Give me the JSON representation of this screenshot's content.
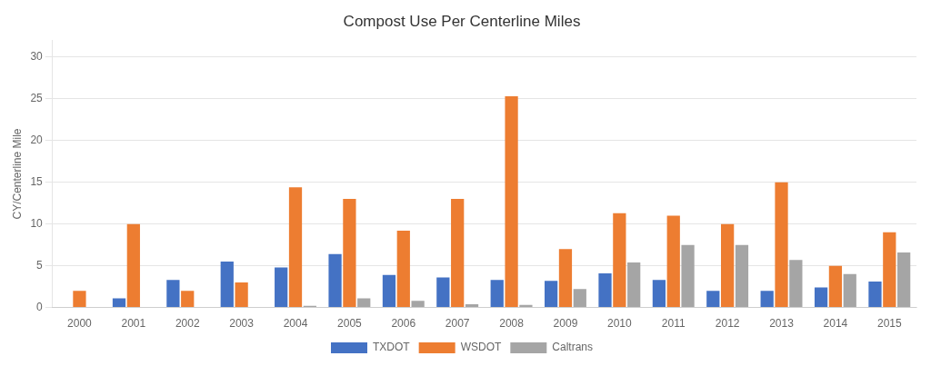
{
  "chart_data": {
    "type": "bar",
    "title": "Compost Use Per Centerline Miles",
    "ylabel": "CY/Centerline Mile",
    "categories": [
      "2000",
      "2001",
      "2002",
      "2003",
      "2004",
      "2005",
      "2006",
      "2007",
      "2008",
      "2009",
      "2010",
      "2011",
      "2012",
      "2013",
      "2014",
      "2015"
    ],
    "series": [
      {
        "name": "TXDOT",
        "color": "#4472C4",
        "values": [
          0,
          1.1,
          3.3,
          5.5,
          4.8,
          6.4,
          3.9,
          3.6,
          3.3,
          3.2,
          4.1,
          3.3,
          2.0,
          2.0,
          2.4,
          3.1
        ]
      },
      {
        "name": "WSDOT",
        "color": "#ED7D31",
        "values": [
          2.0,
          10.0,
          2.0,
          3.0,
          14.4,
          13.0,
          9.2,
          13.0,
          25.3,
          7.0,
          11.3,
          11.0,
          10.0,
          15.0,
          5.0,
          9.0
        ]
      },
      {
        "name": "Caltrans",
        "color": "#A5A5A5",
        "values": [
          0,
          0,
          0,
          0,
          0.2,
          1.1,
          0.8,
          0.4,
          0.3,
          2.2,
          5.4,
          7.5,
          7.5,
          5.7,
          4.0,
          6.6
        ]
      }
    ],
    "ylim": [
      0,
      32
    ],
    "yticks": [
      0,
      5,
      10,
      15,
      20,
      25,
      30
    ],
    "grid": true,
    "legend": "bottom"
  }
}
